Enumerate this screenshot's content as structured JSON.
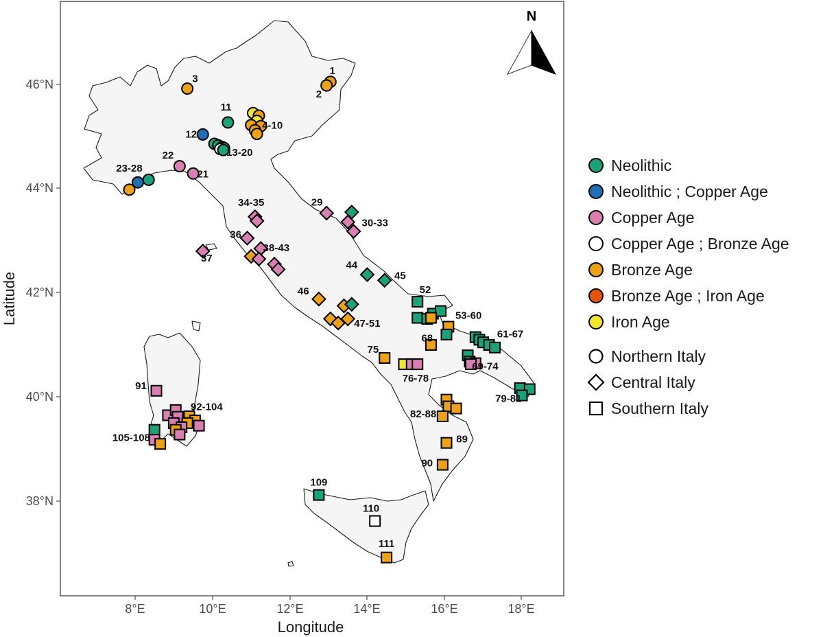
{
  "map": {
    "x_axis_title": "Longitude",
    "y_axis_title": "Latitude",
    "x_ticks": [
      "8°E",
      "10°E",
      "12°E",
      "14°E",
      "16°E",
      "18°E"
    ],
    "y_ticks": [
      "38°N",
      "40°N",
      "42°N",
      "44°N",
      "46°N"
    ],
    "compass_label": "N"
  },
  "legend": {
    "periods": [
      {
        "label": "Neolithic",
        "color": "#1aa37a"
      },
      {
        "label": "Neolithic ; Copper Age",
        "color": "#1f6fb5"
      },
      {
        "label": "Copper Age",
        "color": "#d97fb2"
      },
      {
        "label": "Copper Age ; Bronze Age",
        "color": "#ffffff"
      },
      {
        "label": "Bronze Age",
        "color": "#eda213"
      },
      {
        "label": "Bronze Age ; Iron Age",
        "color": "#e4550e"
      },
      {
        "label": "Iron Age",
        "color": "#f2e62b"
      }
    ],
    "regions": [
      {
        "label": "Northern Italy",
        "shape": "circle"
      },
      {
        "label": "Central Italy",
        "shape": "diamond"
      },
      {
        "label": "Southern Italy",
        "shape": "square"
      }
    ]
  },
  "chart_data": {
    "type": "scatter",
    "title": "",
    "xlabel": "Longitude",
    "ylabel": "Latitude",
    "xlim": [
      6.1,
      19.1
    ],
    "ylim": [
      36.1,
      47.6
    ],
    "grid": false,
    "legend_position": "right",
    "site_labels": [
      {
        "text": "1",
        "lon": 13.1,
        "lat": 46.25
      },
      {
        "text": "2",
        "lon": 12.75,
        "lat": 45.8
      },
      {
        "text": "3",
        "lon": 9.55,
        "lat": 46.1
      },
      {
        "text": "11",
        "lon": 10.35,
        "lat": 45.55
      },
      {
        "text": "4-10",
        "lon": 11.55,
        "lat": 45.2
      },
      {
        "text": "12",
        "lon": 9.45,
        "lat": 45.03
      },
      {
        "text": "13-20",
        "lon": 10.7,
        "lat": 44.68
      },
      {
        "text": "22",
        "lon": 8.85,
        "lat": 44.63
      },
      {
        "text": "21",
        "lon": 9.75,
        "lat": 44.27
      },
      {
        "text": "23-28",
        "lon": 7.85,
        "lat": 44.38
      },
      {
        "text": "29",
        "lon": 12.7,
        "lat": 43.73
      },
      {
        "text": "34-35",
        "lon": 11.0,
        "lat": 43.72
      },
      {
        "text": "30-33",
        "lon": 14.2,
        "lat": 43.33
      },
      {
        "text": "36",
        "lon": 10.6,
        "lat": 43.11
      },
      {
        "text": "38-43",
        "lon": 11.65,
        "lat": 42.85
      },
      {
        "text": "37",
        "lon": 9.85,
        "lat": 42.65
      },
      {
        "text": "44",
        "lon": 13.6,
        "lat": 42.52
      },
      {
        "text": "45",
        "lon": 14.85,
        "lat": 42.32
      },
      {
        "text": "46",
        "lon": 12.35,
        "lat": 42.02
      },
      {
        "text": "52",
        "lon": 15.5,
        "lat": 42.05
      },
      {
        "text": "47-51",
        "lon": 14.0,
        "lat": 41.4
      },
      {
        "text": "53-60",
        "lon": 16.62,
        "lat": 41.55
      },
      {
        "text": "61-67",
        "lon": 17.7,
        "lat": 41.2
      },
      {
        "text": "68",
        "lon": 15.55,
        "lat": 41.12
      },
      {
        "text": "75",
        "lon": 14.15,
        "lat": 40.9
      },
      {
        "text": "69-74",
        "lon": 17.05,
        "lat": 40.58
      },
      {
        "text": "76-78",
        "lon": 15.25,
        "lat": 40.35
      },
      {
        "text": "91",
        "lon": 8.15,
        "lat": 40.2
      },
      {
        "text": "79-81",
        "lon": 17.65,
        "lat": 39.96
      },
      {
        "text": "92-104",
        "lon": 9.85,
        "lat": 39.8
      },
      {
        "text": "82-88",
        "lon": 15.45,
        "lat": 39.66
      },
      {
        "text": "105-108",
        "lon": 7.9,
        "lat": 39.21
      },
      {
        "text": "89",
        "lon": 16.45,
        "lat": 39.18
      },
      {
        "text": "90",
        "lon": 15.55,
        "lat": 38.72
      },
      {
        "text": "109",
        "lon": 12.75,
        "lat": 38.35
      },
      {
        "text": "110",
        "lon": 14.1,
        "lat": 37.85
      },
      {
        "text": "111",
        "lon": 14.5,
        "lat": 37.17
      }
    ],
    "sites": [
      {
        "period": "Bronze Age",
        "region": "Northern Italy",
        "lon": 13.05,
        "lat": 46.05
      },
      {
        "period": "Bronze Age",
        "region": "Northern Italy",
        "lon": 12.95,
        "lat": 45.98
      },
      {
        "period": "Bronze Age",
        "region": "Northern Italy",
        "lon": 9.35,
        "lat": 45.92
      },
      {
        "period": "Neolithic",
        "region": "Northern Italy",
        "lon": 10.4,
        "lat": 45.27
      },
      {
        "period": "Iron Age",
        "region": "Northern Italy",
        "lon": 11.05,
        "lat": 45.45
      },
      {
        "period": "Bronze Age",
        "region": "Northern Italy",
        "lon": 11.2,
        "lat": 45.4
      },
      {
        "period": "Iron Age",
        "region": "Northern Italy",
        "lon": 11.15,
        "lat": 45.3
      },
      {
        "period": "Bronze Age",
        "region": "Northern Italy",
        "lon": 11.0,
        "lat": 45.22
      },
      {
        "period": "Bronze Age",
        "region": "Northern Italy",
        "lon": 11.25,
        "lat": 45.2
      },
      {
        "period": "Bronze Age",
        "region": "Northern Italy",
        "lon": 11.1,
        "lat": 45.12
      },
      {
        "period": "Bronze Age",
        "region": "Northern Italy",
        "lon": 11.15,
        "lat": 45.05
      },
      {
        "period": "Neolithic ; Copper Age",
        "region": "Northern Italy",
        "lon": 9.75,
        "lat": 45.04
      },
      {
        "period": "Neolithic",
        "region": "Northern Italy",
        "lon": 10.05,
        "lat": 44.86
      },
      {
        "period": "Neolithic",
        "region": "Northern Italy",
        "lon": 10.15,
        "lat": 44.83
      },
      {
        "period": "Neolithic",
        "region": "Northern Italy",
        "lon": 10.25,
        "lat": 44.8
      },
      {
        "period": "Neolithic",
        "region": "Northern Italy",
        "lon": 10.3,
        "lat": 44.78
      },
      {
        "period": "Copper Age ; Bronze Age",
        "region": "Northern Italy",
        "lon": 10.2,
        "lat": 44.76
      },
      {
        "period": "Neolithic",
        "region": "Northern Italy",
        "lon": 10.28,
        "lat": 44.74
      },
      {
        "period": "Copper Age",
        "region": "Northern Italy",
        "lon": 9.15,
        "lat": 44.43
      },
      {
        "period": "Copper Age",
        "region": "Northern Italy",
        "lon": 9.5,
        "lat": 44.29
      },
      {
        "period": "Neolithic",
        "region": "Northern Italy",
        "lon": 8.35,
        "lat": 44.17
      },
      {
        "period": "Neolithic ; Copper Age",
        "region": "Northern Italy",
        "lon": 8.07,
        "lat": 44.12
      },
      {
        "period": "Bronze Age",
        "region": "Northern Italy",
        "lon": 7.85,
        "lat": 43.98
      },
      {
        "period": "Copper Age",
        "region": "Central Italy",
        "lon": 12.95,
        "lat": 43.53
      },
      {
        "period": "Neolithic",
        "region": "Central Italy",
        "lon": 13.6,
        "lat": 43.55
      },
      {
        "period": "Copper Age",
        "region": "Central Italy",
        "lon": 13.5,
        "lat": 43.36
      },
      {
        "period": "Copper Age",
        "region": "Central Italy",
        "lon": 13.65,
        "lat": 43.18
      },
      {
        "period": "Copper Age",
        "region": "Central Italy",
        "lon": 11.1,
        "lat": 43.46
      },
      {
        "period": "Copper Age",
        "region": "Central Italy",
        "lon": 11.15,
        "lat": 43.38
      },
      {
        "period": "Copper Age",
        "region": "Central Italy",
        "lon": 10.9,
        "lat": 43.05
      },
      {
        "period": "Copper Age",
        "region": "Central Italy",
        "lon": 11.25,
        "lat": 42.85
      },
      {
        "period": "Bronze Age",
        "region": "Central Italy",
        "lon": 11.0,
        "lat": 42.7
      },
      {
        "period": "Copper Age",
        "region": "Central Italy",
        "lon": 11.2,
        "lat": 42.65
      },
      {
        "period": "Copper Age",
        "region": "Central Italy",
        "lon": 11.6,
        "lat": 42.55
      },
      {
        "period": "Copper Age",
        "region": "Central Italy",
        "lon": 11.7,
        "lat": 42.45
      },
      {
        "period": "Copper Age",
        "region": "Central Italy",
        "lon": 9.75,
        "lat": 42.8
      },
      {
        "period": "Neolithic",
        "region": "Central Italy",
        "lon": 14.0,
        "lat": 42.35
      },
      {
        "period": "Neolithic",
        "region": "Central Italy",
        "lon": 14.45,
        "lat": 42.24
      },
      {
        "period": "Bronze Age",
        "region": "Central Italy",
        "lon": 12.75,
        "lat": 41.88
      },
      {
        "period": "Bronze Age",
        "region": "Central Italy",
        "lon": 13.4,
        "lat": 41.75
      },
      {
        "period": "Neolithic",
        "region": "Central Italy",
        "lon": 13.6,
        "lat": 41.78
      },
      {
        "period": "Bronze Age",
        "region": "Central Italy",
        "lon": 13.05,
        "lat": 41.5
      },
      {
        "period": "Bronze Age",
        "region": "Central Italy",
        "lon": 13.25,
        "lat": 41.42
      },
      {
        "period": "Bronze Age",
        "region": "Central Italy",
        "lon": 13.5,
        "lat": 41.5
      },
      {
        "period": "Neolithic",
        "region": "Southern Italy",
        "lon": 15.3,
        "lat": 41.83
      },
      {
        "period": "Neolithic",
        "region": "Southern Italy",
        "lon": 15.3,
        "lat": 41.52
      },
      {
        "period": "Neolithic",
        "region": "Southern Italy",
        "lon": 15.55,
        "lat": 41.5
      },
      {
        "period": "Neolithic",
        "region": "Southern Italy",
        "lon": 15.7,
        "lat": 41.6
      },
      {
        "period": "Neolithic",
        "region": "Southern Italy",
        "lon": 15.9,
        "lat": 41.65
      },
      {
        "period": "Bronze Age",
        "region": "Southern Italy",
        "lon": 15.65,
        "lat": 41.52
      },
      {
        "period": "Bronze Age",
        "region": "Southern Italy",
        "lon": 16.1,
        "lat": 41.35
      },
      {
        "period": "Neolithic",
        "region": "Southern Italy",
        "lon": 16.05,
        "lat": 41.2
      },
      {
        "period": "Bronze Age",
        "region": "Southern Italy",
        "lon": 15.65,
        "lat": 41.0
      },
      {
        "period": "Neolithic",
        "region": "Southern Italy",
        "lon": 16.8,
        "lat": 41.15
      },
      {
        "period": "Neolithic",
        "region": "Southern Italy",
        "lon": 16.9,
        "lat": 41.1
      },
      {
        "period": "Neolithic",
        "region": "Southern Italy",
        "lon": 17.0,
        "lat": 41.05
      },
      {
        "period": "Neolithic",
        "region": "Southern Italy",
        "lon": 17.15,
        "lat": 41.0
      },
      {
        "period": "Neolithic",
        "region": "Southern Italy",
        "lon": 17.3,
        "lat": 40.95
      },
      {
        "period": "Neolithic",
        "region": "Southern Italy",
        "lon": 16.6,
        "lat": 40.8
      },
      {
        "period": "Neolithic",
        "region": "Southern Italy",
        "lon": 16.65,
        "lat": 40.68
      },
      {
        "period": "Copper Age",
        "region": "Southern Italy",
        "lon": 16.8,
        "lat": 40.65
      },
      {
        "period": "Copper Age",
        "region": "Southern Italy",
        "lon": 16.68,
        "lat": 40.63
      },
      {
        "period": "Bronze Age",
        "region": "Southern Italy",
        "lon": 14.45,
        "lat": 40.75
      },
      {
        "period": "Iron Age",
        "region": "Southern Italy",
        "lon": 14.95,
        "lat": 40.63
      },
      {
        "period": "Copper Age",
        "region": "Southern Italy",
        "lon": 15.15,
        "lat": 40.63
      },
      {
        "period": "Copper Age",
        "region": "Southern Italy",
        "lon": 15.3,
        "lat": 40.63
      },
      {
        "period": "Copper Age",
        "region": "Southern Italy",
        "lon": 8.55,
        "lat": 40.12
      },
      {
        "period": "Neolithic",
        "region": "Southern Italy",
        "lon": 17.95,
        "lat": 40.17
      },
      {
        "period": "Neolithic",
        "region": "Southern Italy",
        "lon": 18.2,
        "lat": 40.15
      },
      {
        "period": "Neolithic",
        "region": "Southern Italy",
        "lon": 18.0,
        "lat": 40.03
      },
      {
        "period": "Bronze Age",
        "region": "Southern Italy",
        "lon": 16.05,
        "lat": 39.95
      },
      {
        "period": "Bronze Age",
        "region": "Southern Italy",
        "lon": 16.1,
        "lat": 39.82
      },
      {
        "period": "Bronze Age",
        "region": "Southern Italy",
        "lon": 16.3,
        "lat": 39.78
      },
      {
        "period": "Bronze Age",
        "region": "Southern Italy",
        "lon": 15.95,
        "lat": 39.63
      },
      {
        "period": "Bronze Age",
        "region": "Southern Italy",
        "lon": 16.05,
        "lat": 39.12
      },
      {
        "period": "Bronze Age",
        "region": "Southern Italy",
        "lon": 15.95,
        "lat": 38.7
      },
      {
        "period": "Copper Age",
        "region": "Southern Italy",
        "lon": 8.85,
        "lat": 39.65
      },
      {
        "period": "Copper Age",
        "region": "Southern Italy",
        "lon": 9.05,
        "lat": 39.75
      },
      {
        "period": "Copper Age",
        "region": "Southern Italy",
        "lon": 9.1,
        "lat": 39.62
      },
      {
        "period": "Bronze Age",
        "region": "Southern Italy",
        "lon": 9.4,
        "lat": 39.63
      },
      {
        "period": "Bronze Age",
        "region": "Southern Italy",
        "lon": 9.55,
        "lat": 39.55
      },
      {
        "period": "Copper Age",
        "region": "Southern Italy",
        "lon": 9.0,
        "lat": 39.5
      },
      {
        "period": "Bronze Age",
        "region": "Southern Italy",
        "lon": 9.35,
        "lat": 39.5
      },
      {
        "period": "Copper Age",
        "region": "Southern Italy",
        "lon": 9.65,
        "lat": 39.45
      },
      {
        "period": "Copper Age",
        "region": "Southern Italy",
        "lon": 9.2,
        "lat": 39.42
      },
      {
        "period": "Bronze Age",
        "region": "Southern Italy",
        "lon": 9.05,
        "lat": 39.37
      },
      {
        "period": "Copper Age",
        "region": "Southern Italy",
        "lon": 9.15,
        "lat": 39.28
      },
      {
        "period": "Neolithic",
        "region": "Southern Italy",
        "lon": 8.5,
        "lat": 39.37
      },
      {
        "period": "Copper Age",
        "region": "Southern Italy",
        "lon": 8.5,
        "lat": 39.18
      },
      {
        "period": "Bronze Age",
        "region": "Southern Italy",
        "lon": 8.65,
        "lat": 39.1
      },
      {
        "period": "Neolithic",
        "region": "Southern Italy",
        "lon": 12.75,
        "lat": 38.12
      },
      {
        "period": "Copper Age ; Bronze Age",
        "region": "Southern Italy",
        "lon": 14.2,
        "lat": 37.62
      },
      {
        "period": "Bronze Age",
        "region": "Southern Italy",
        "lon": 14.5,
        "lat": 36.92
      }
    ]
  }
}
